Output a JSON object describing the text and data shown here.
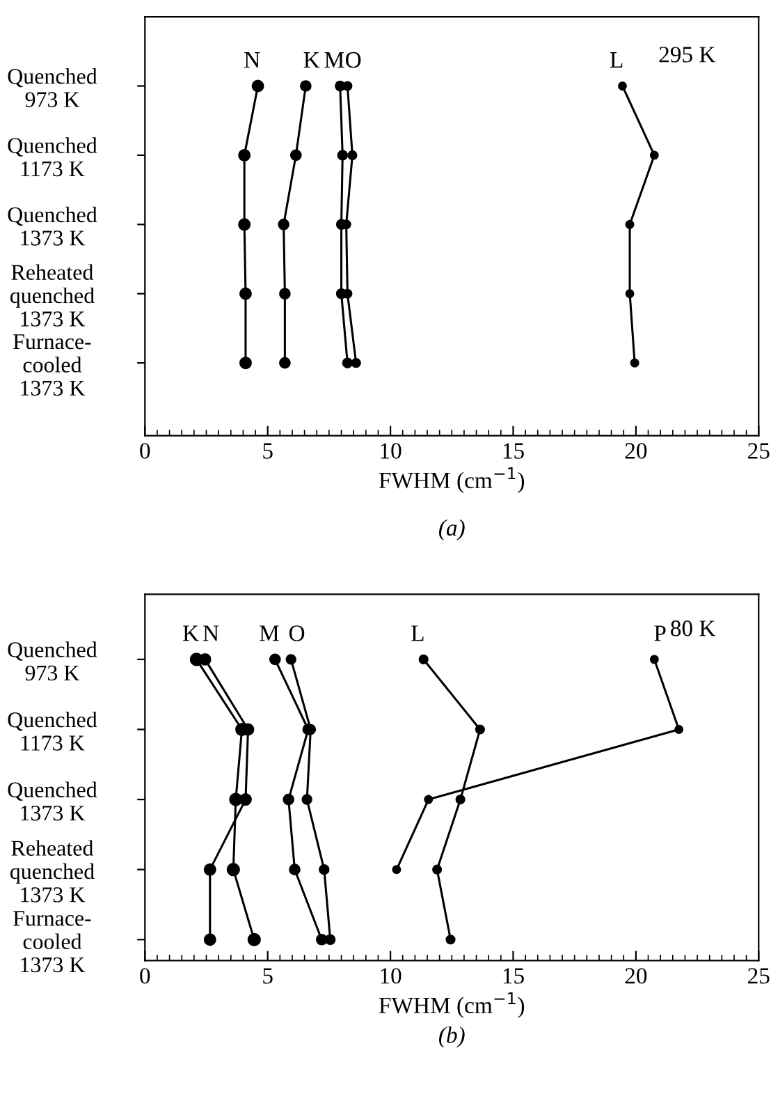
{
  "chart_data": [
    {
      "type": "line",
      "orientation": "horizontal",
      "title": "(a)",
      "xlabel": "FWHM (cm$^{−1}$)",
      "categories": [
        "Quenched\n973 K",
        "Quenched\n1173 K",
        "Quenched\n1373 K",
        "Reheated\nquenched\n1373 K",
        "Furnace-\ncooled\n1373 K"
      ],
      "xlim": [
        0,
        25
      ],
      "xticks": [
        0,
        5,
        10,
        15,
        20,
        25
      ],
      "marker": "circle",
      "grid": false,
      "legend": false,
      "annotations": [
        "295 K"
      ],
      "series": [
        {
          "name": "N",
          "color": "#000000",
          "values": [
            4.6,
            4.05,
            4.05,
            4.1,
            4.1
          ]
        },
        {
          "name": "K",
          "color": "#000000",
          "values": [
            6.55,
            6.15,
            5.65,
            5.7,
            5.7
          ]
        },
        {
          "name": "M",
          "color": "#000000",
          "values": [
            7.95,
            8.05,
            8.0,
            8.0,
            8.25
          ]
        },
        {
          "name": "O",
          "color": "#000000",
          "values": [
            8.25,
            8.45,
            8.2,
            8.25,
            8.6
          ]
        },
        {
          "name": "L",
          "color": "#000000",
          "values": [
            19.45,
            20.75,
            19.75,
            19.75,
            19.95
          ]
        }
      ]
    },
    {
      "type": "line",
      "orientation": "horizontal",
      "title": "(b)",
      "xlabel": "FWHM (cm$^{−1}$)",
      "categories": [
        "Quenched\n973 K",
        "Quenched\n1173 K",
        "Quenched\n1373 K",
        "Reheated\nquenched\n1373 K",
        "Furnace-\ncooled\n1373 K"
      ],
      "xlim": [
        0,
        25
      ],
      "xticks": [
        0,
        5,
        10,
        15,
        20,
        25
      ],
      "marker": "circle",
      "grid": false,
      "legend": false,
      "annotations": [
        "80 K"
      ],
      "series": [
        {
          "name": "K",
          "color": "#000000",
          "values": [
            2.1,
            3.95,
            3.7,
            3.6,
            4.45
          ]
        },
        {
          "name": "N",
          "color": "#000000",
          "values": [
            2.45,
            4.2,
            4.1,
            2.65,
            2.65
          ]
        },
        {
          "name": "M",
          "color": "#000000",
          "values": [
            5.3,
            6.65,
            5.85,
            6.1,
            7.2
          ]
        },
        {
          "name": "O",
          "color": "#000000",
          "values": [
            5.95,
            6.75,
            6.6,
            7.3,
            7.55
          ]
        },
        {
          "name": "L",
          "color": "#000000",
          "values": [
            11.35,
            13.65,
            12.85,
            11.9,
            12.45
          ]
        },
        {
          "name": "P",
          "color": "#000000",
          "values": [
            20.75,
            21.75,
            11.55,
            10.25,
            null
          ]
        }
      ]
    }
  ]
}
